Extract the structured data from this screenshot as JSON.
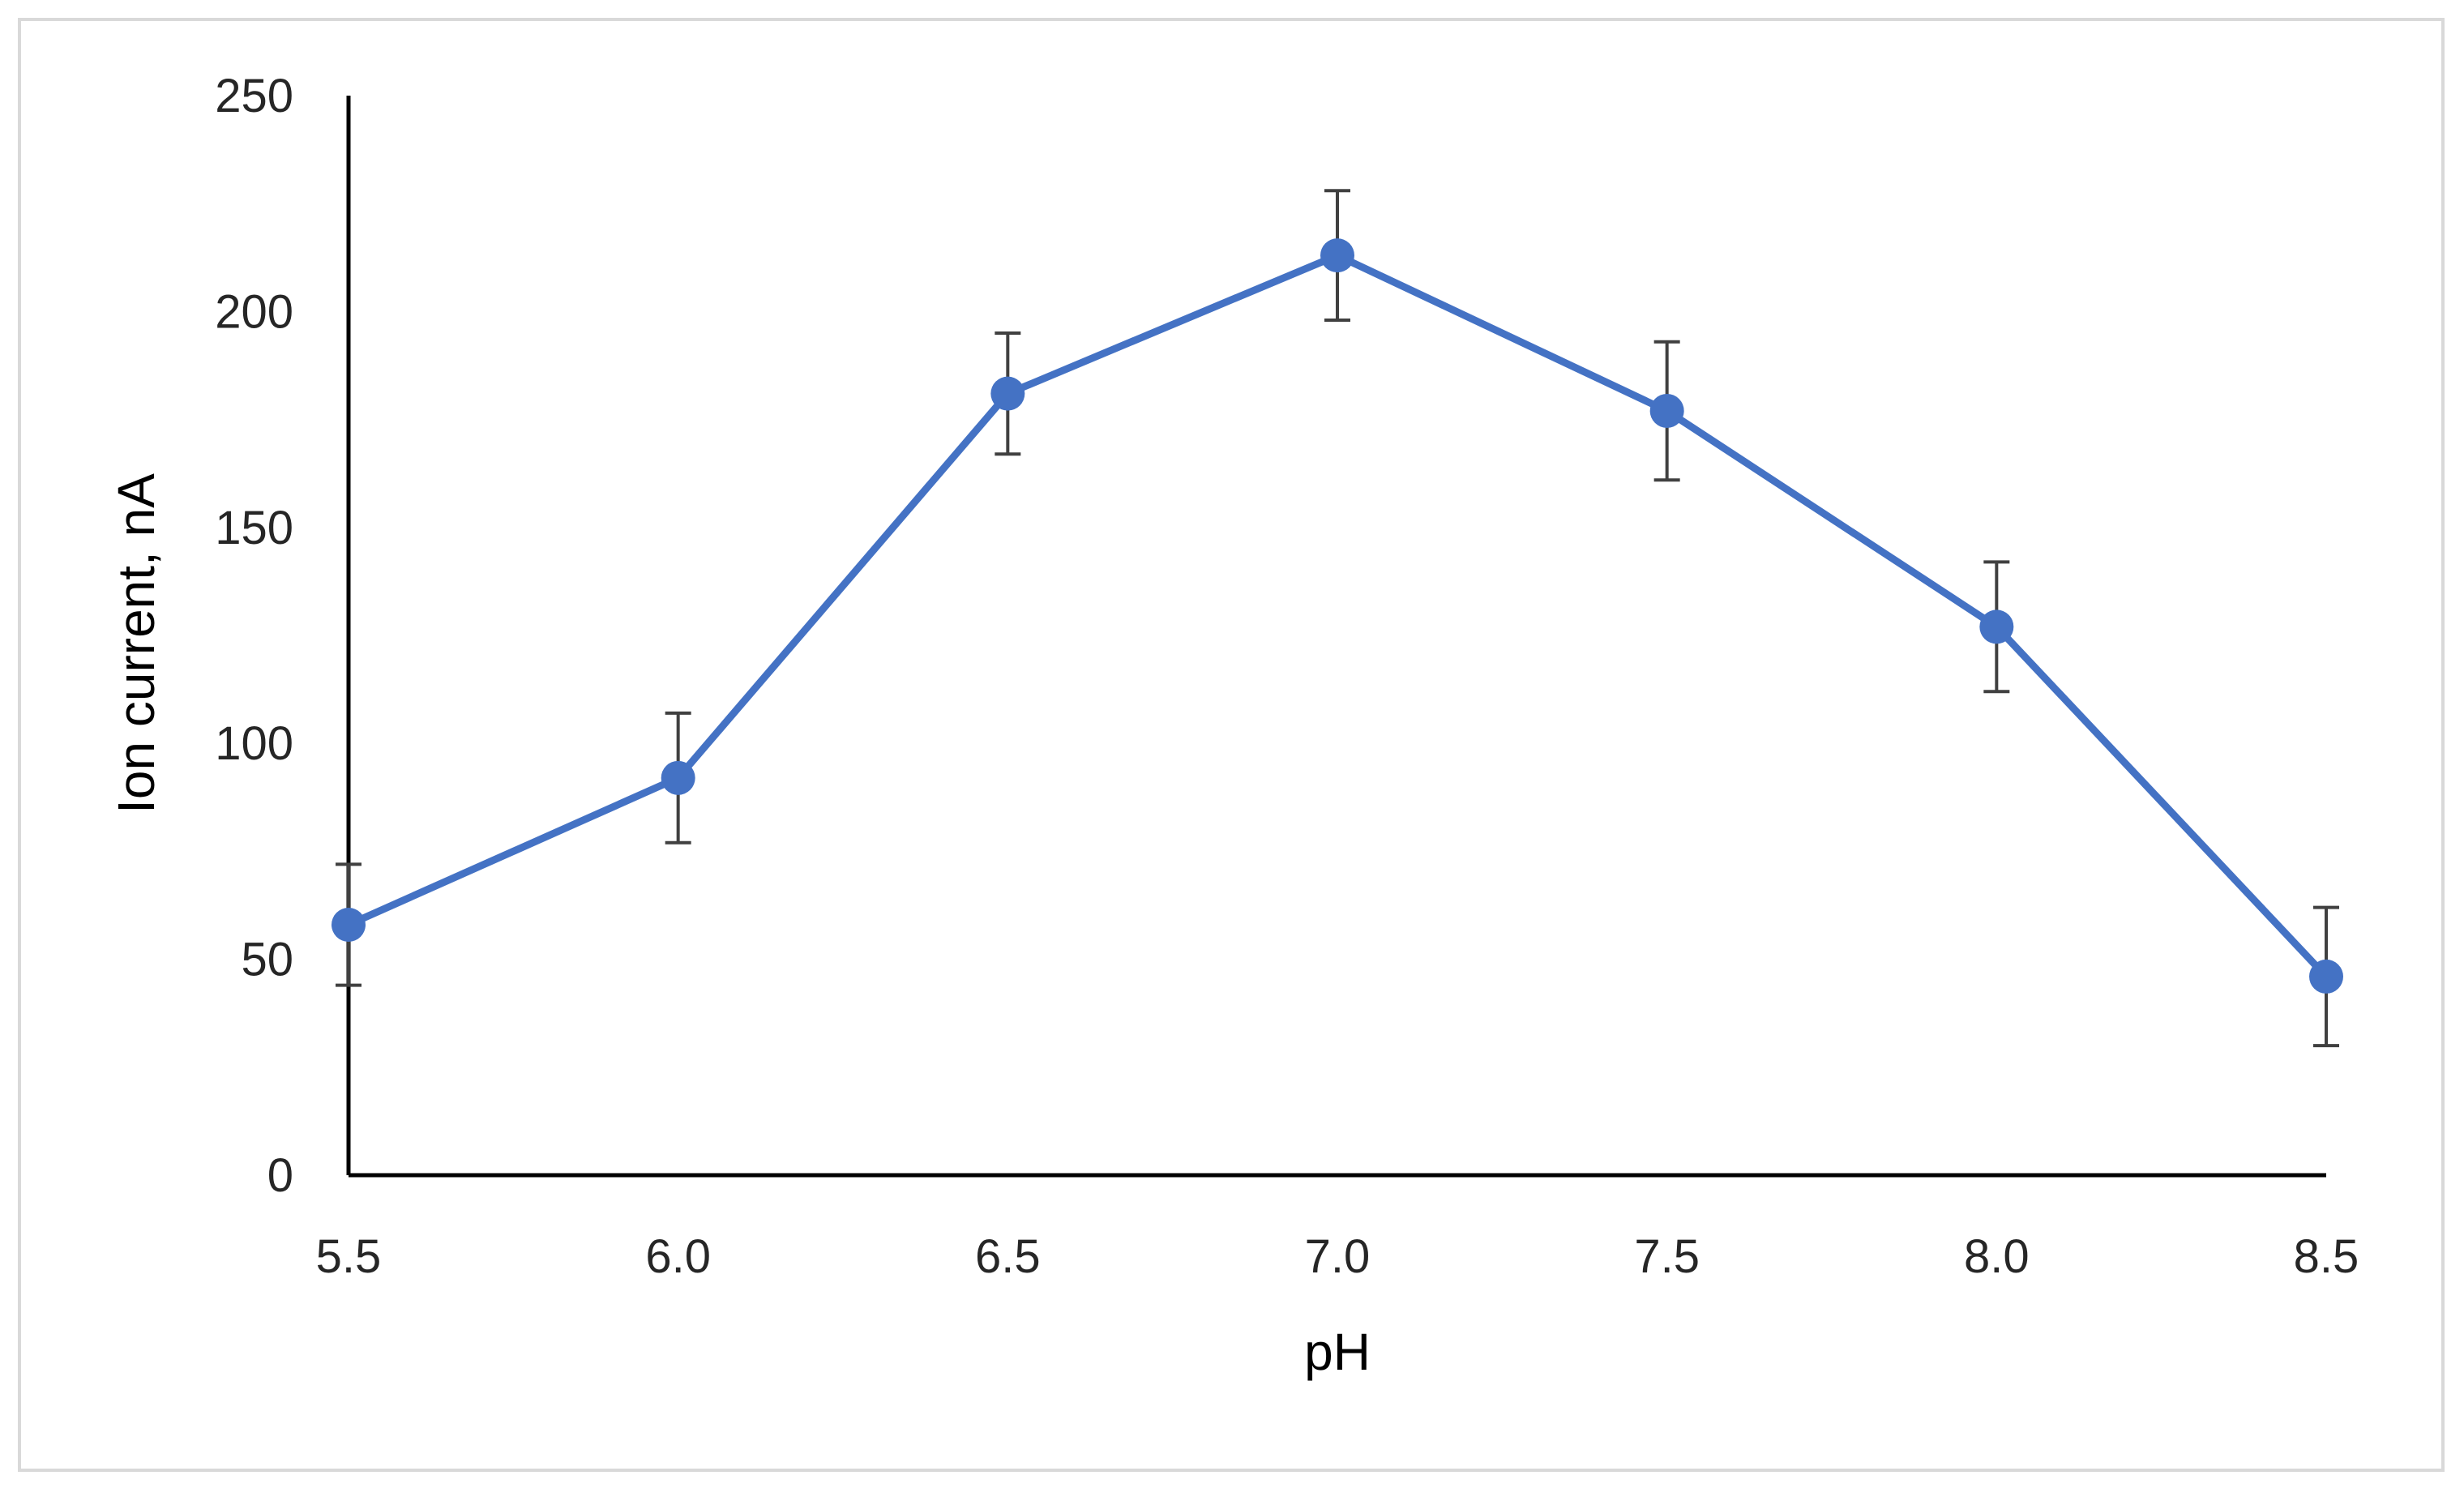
{
  "chart_data": {
    "type": "line",
    "title": "",
    "xlabel": "pH",
    "ylabel": "Ion current, nA",
    "categories": [
      "5.5",
      "6.0",
      "6.5",
      "7.0",
      "7.5",
      "8.0",
      "8.5"
    ],
    "series": [
      {
        "values": [
          58,
          92,
          181,
          213,
          177,
          127,
          46
        ],
        "error": [
          14,
          15,
          14,
          15,
          16,
          15,
          16
        ],
        "color": "#4472C4"
      }
    ],
    "ylim": [
      0,
      250
    ],
    "yticks": [
      0,
      50,
      100,
      150,
      200,
      250
    ],
    "grid": false,
    "legend": "none",
    "error_bar_color": "#404040"
  }
}
